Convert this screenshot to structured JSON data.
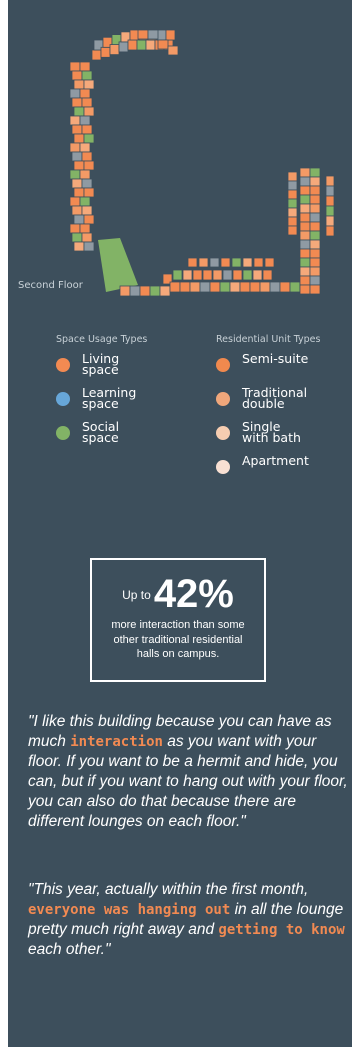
{
  "floor_label": "Second Floor",
  "legend": {
    "space_usage": {
      "title": "Space Usage Types",
      "items": [
        {
          "label": "Living\nspace",
          "color": "#f28a52"
        },
        {
          "label": "Learning\nspace",
          "color": "#67a7d9"
        },
        {
          "label": "Social\nspace",
          "color": "#82b366"
        }
      ]
    },
    "residential_units": {
      "title": "Residential Unit Types",
      "items": [
        {
          "label": "Semi-suite",
          "color": "#f0894e"
        },
        {
          "label": "Traditional\ndouble",
          "color": "#f0a77b"
        },
        {
          "label": "Single\nwith bath",
          "color": "#f6cdb1"
        },
        {
          "label": "Apartment",
          "color": "#f8e0d3"
        }
      ]
    }
  },
  "stat": {
    "prefix": "Up to",
    "value": "42%",
    "description": "more interaction than some other traditional residential halls on campus."
  },
  "quotes": [
    {
      "before": "\"I like this building because you can have as much ",
      "highlight": "interaction",
      "after": " as you want with your floor. If you want to be a hermit and hide, you can, but if you want to hang out with your floor, you can also do that because there are different lounges on each floor.\""
    },
    {
      "p1": "\"This year, actually within the first month, ",
      "h1": "everyone was hanging out",
      "p2": " in all the lounge pretty much right away and ",
      "h2": "getting to know",
      "p3": " each other.\""
    }
  ],
  "colors": {
    "background": "#3d4f5c",
    "accent": "#f28a52",
    "living": "#f28a52",
    "learning": "#8f9aa3",
    "social": "#82b366"
  }
}
